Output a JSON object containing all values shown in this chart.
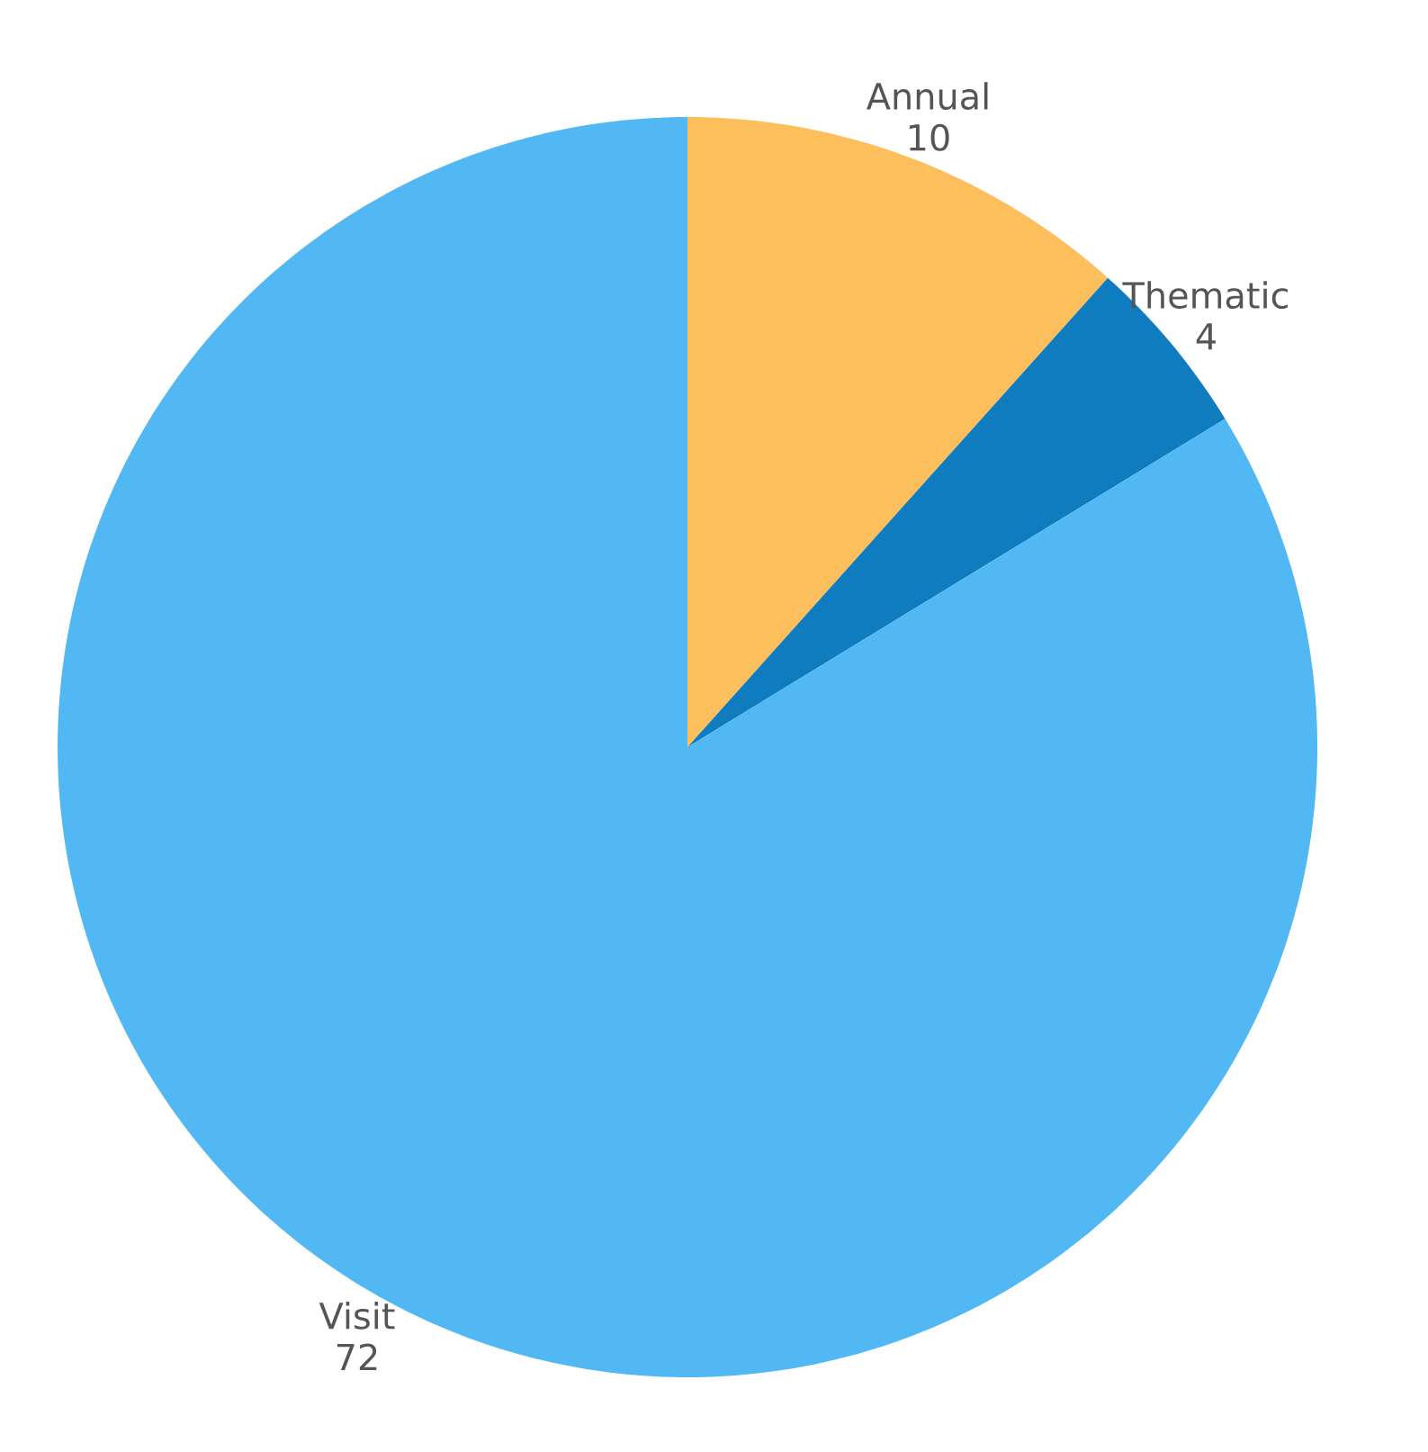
{
  "chart_data": {
    "type": "pie",
    "categories": [
      "Annual",
      "Thematic",
      "Visit"
    ],
    "values": [
      10,
      4,
      72
    ],
    "colors": [
      "#fdbe5c",
      "#0e7cbf",
      "#52b8f4"
    ],
    "data_labels": true
  }
}
